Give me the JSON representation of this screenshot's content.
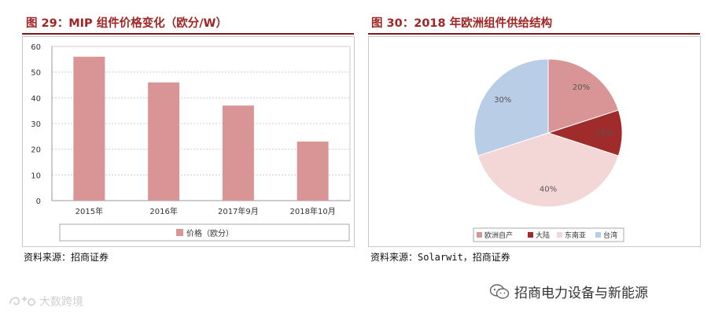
{
  "left": {
    "title": "图 29：MIP 组件价格变化（欧分/W）",
    "source": "资料来源：招商证券"
  },
  "right": {
    "title": "图 30：2018 年欧洲组件供给结构",
    "source": "资料来源：Solarwit，招商证券"
  },
  "watermarks": {
    "right_text": "招商电力设备与新能源",
    "left_text": "大数跨境",
    "wechat_icon": "wechat-icon",
    "left_logo_icon": "swirl-logo-icon"
  },
  "colors": {
    "title_red": "#a12525",
    "bar": "#d99595",
    "pie": [
      "#d99595",
      "#9f2b2b",
      "#f3d7d7",
      "#b9cde6"
    ]
  },
  "chart_data": [
    {
      "type": "bar",
      "title": "MIP 组件价格变化（欧分/W）",
      "categories": [
        "2015年",
        "2016年",
        "2017年9月",
        "2018年10月"
      ],
      "series": [
        {
          "name": "价格（欧分）",
          "values": [
            56,
            46,
            37,
            23
          ]
        }
      ],
      "ylim": [
        0,
        60
      ],
      "yticks": [
        0,
        10,
        20,
        30,
        40,
        50,
        60
      ],
      "grid": true,
      "legend": "bottom"
    },
    {
      "type": "pie",
      "title": "2018 年欧洲组件供给结构",
      "labels": [
        "欧洲自产",
        "大陆",
        "东南亚",
        "台湾"
      ],
      "values": [
        20,
        10,
        40,
        30
      ],
      "data_labels": [
        "20%",
        "10%",
        "40%",
        "30%"
      ],
      "legend": "bottom"
    }
  ]
}
